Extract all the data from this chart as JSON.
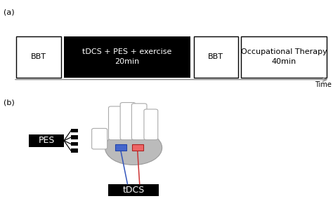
{
  "panel_a_label": "(a)",
  "panel_b_label": "(b)",
  "bbt1_label": "BBT",
  "tdcs_label": "tDCS + PES + exercise\n20min",
  "bbt2_label": "BBT",
  "ot_label": "Occupational Therapy\n40min",
  "time_label": "Time",
  "pes_label": "PES",
  "tdcs_box_label": "tDCS",
  "bg_color": "#ffffff",
  "black": "#000000",
  "white": "#ffffff",
  "palm_gray": "#bbbbbb",
  "finger_edge": "#aaaaaa",
  "blue_elec": "#4466cc",
  "red_elec": "#ee6666",
  "blue_wire": "#3355bb",
  "red_wire": "#cc3333"
}
